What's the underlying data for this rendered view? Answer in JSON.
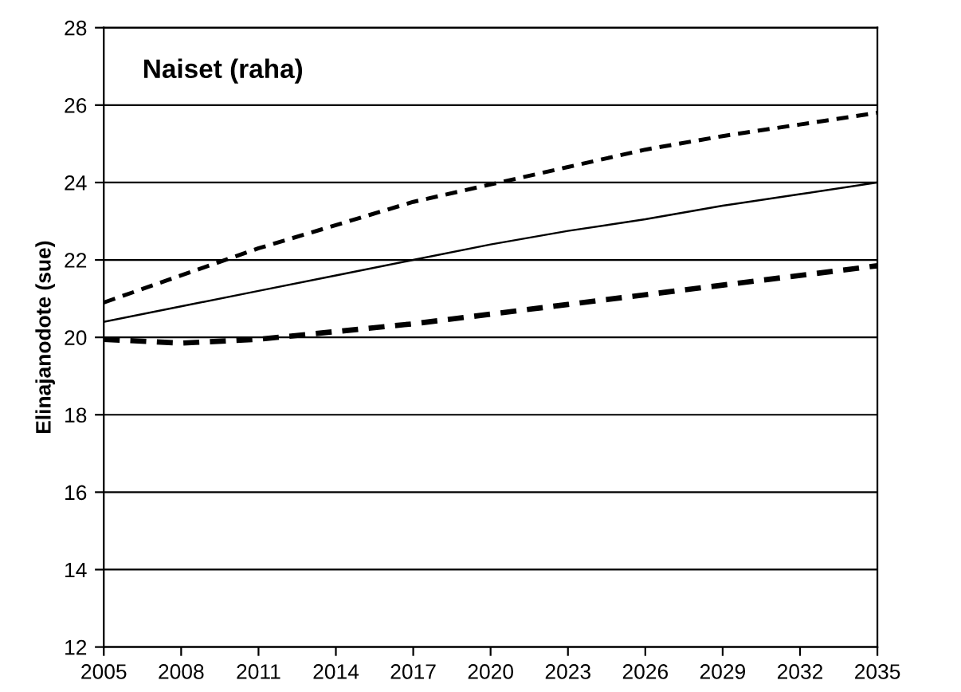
{
  "chart_data": {
    "type": "line",
    "title": "Naiset (raha)",
    "ylabel": "Elinajanodote (sue)",
    "x": [
      2005,
      2008,
      2011,
      2014,
      2017,
      2020,
      2023,
      2026,
      2029,
      2032,
      2035
    ],
    "series": [
      {
        "color": "#000000",
        "line_style": "dashed",
        "values": [
          20.9,
          21.6,
          22.3,
          22.9,
          23.5,
          23.95,
          24.4,
          24.85,
          25.2,
          25.5,
          25.8
        ]
      },
      {
        "color": "#000000",
        "line_style": "solid",
        "values": [
          20.4,
          20.8,
          21.2,
          21.6,
          22.0,
          22.4,
          22.75,
          23.05,
          23.4,
          23.7,
          24.0
        ]
      },
      {
        "color": "#000000",
        "line_style": "dashed",
        "values": [
          19.95,
          19.85,
          19.95,
          20.15,
          20.35,
          20.6,
          20.85,
          21.1,
          21.35,
          21.6,
          21.85
        ]
      }
    ],
    "xlim": [
      2005,
      2035
    ],
    "xticks": [
      2005,
      2008,
      2011,
      2014,
      2017,
      2020,
      2023,
      2026,
      2029,
      2032,
      2035
    ],
    "ylim": [
      12,
      28
    ],
    "yticks": [
      12,
      14,
      16,
      18,
      20,
      22,
      24,
      26,
      28
    ],
    "grid": "y",
    "legend": false,
    "marker": "none"
  }
}
